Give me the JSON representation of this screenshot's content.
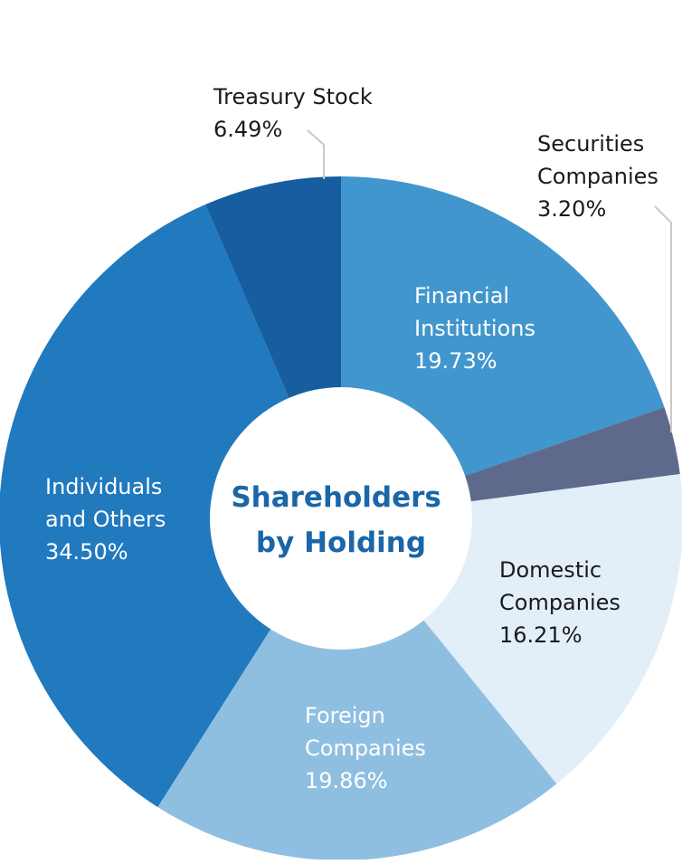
{
  "chart_data": {
    "type": "pie",
    "style": "donut",
    "title": [
      "Shareholders",
      "by Holding"
    ],
    "slices": [
      {
        "label": [
          "Financial",
          "Institutions"
        ],
        "value": 19.73,
        "value_text": "19.73%",
        "color": "#4196cd"
      },
      {
        "label": [
          "Securities",
          "Companies"
        ],
        "value": 3.2,
        "value_text": "3.20%",
        "color": "#5e6a8b"
      },
      {
        "label": [
          "Domestic",
          "Companies"
        ],
        "value": 16.21,
        "value_text": "16.21%",
        "color": "#e2eef8"
      },
      {
        "label": [
          "Foreign",
          "Companies"
        ],
        "value": 19.86,
        "value_text": "19.86%",
        "color": "#8fbfe0"
      },
      {
        "label": [
          "Individuals",
          "and Others"
        ],
        "value": 34.5,
        "value_text": "34.50%",
        "color": "#2179be"
      },
      {
        "label": [
          "Treasury Stock"
        ],
        "value": 6.49,
        "value_text": "6.49%",
        "color": "#175ea0"
      }
    ],
    "label_colors": {
      "on_dark": "#ffffff",
      "on_light": "#1a1a1a"
    },
    "center_title_color": "#1a66a8"
  }
}
